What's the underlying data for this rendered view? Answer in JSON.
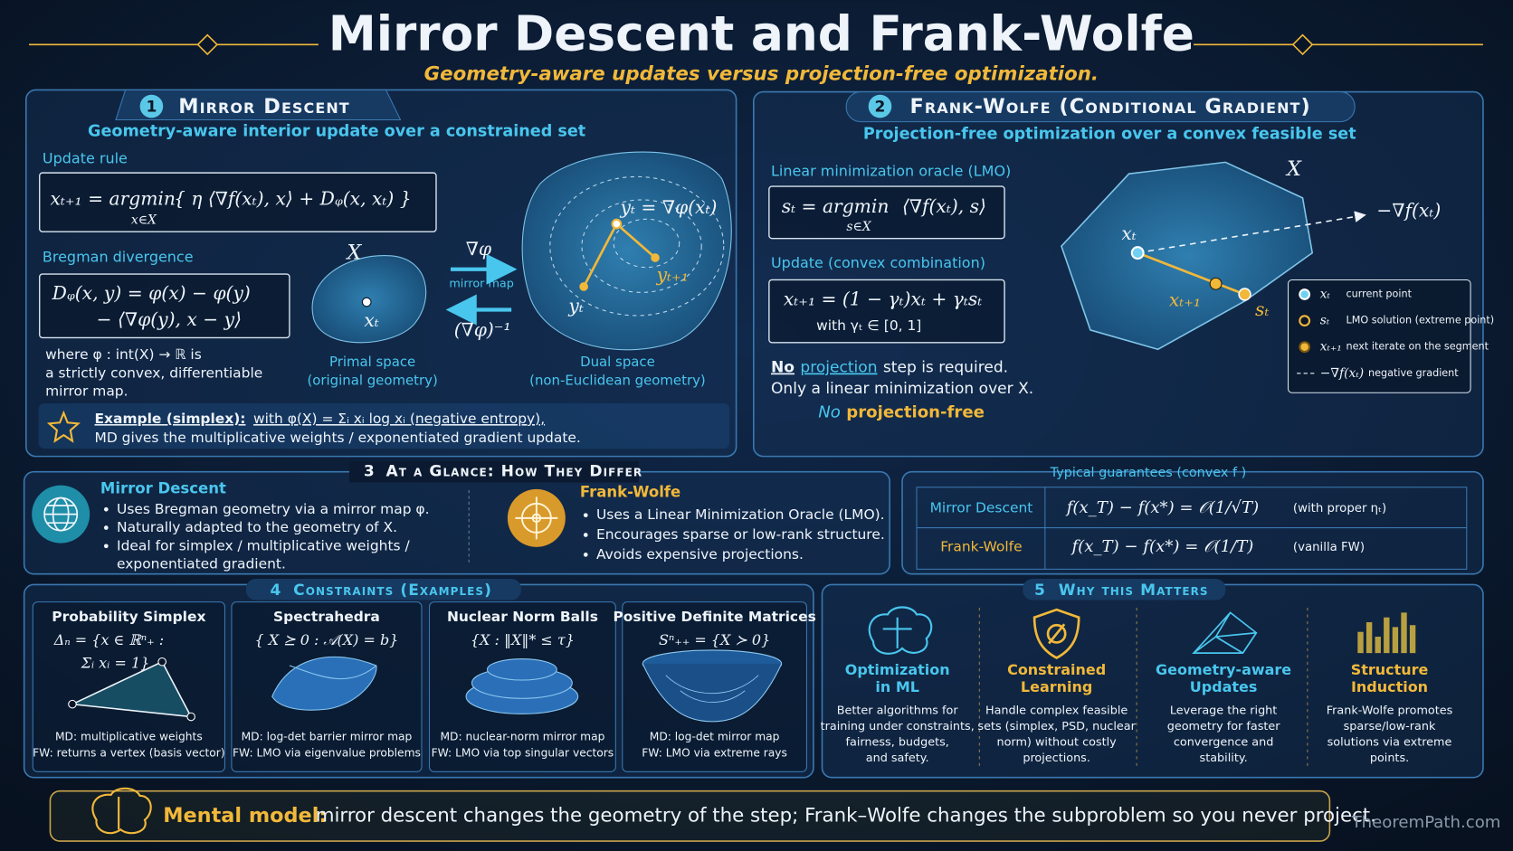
{
  "header": {
    "title": "Mirror Descent and Frank-Wolfe",
    "subtitle": "Geometry-aware updates versus projection-free optimization."
  },
  "mirror_descent": {
    "number": "1",
    "title": "Mirror Descent",
    "subtitle": "Geometry-aware interior update over a constrained set",
    "update_rule_label": "Update rule",
    "update_rule": {
      "lhs": "xₜ₊₁ = argmin",
      "sub": "x∈X",
      "rhs": "{ η ⟨∇f(xₜ), x⟩ + Dᵩ(x, xₜ) }"
    },
    "bregman_label": "Bregman divergence",
    "bregman": [
      "Dᵩ(x, y) = φ(x) − φ(y)",
      "− ⟨∇φ(y), x − y⟩"
    ],
    "where": [
      "where φ : int(X) → ℝ is",
      "a strictly convex, differentiable",
      "mirror map."
    ],
    "primal": {
      "set_label": "X",
      "point_label": "xₜ",
      "caption": [
        "Primal space",
        "(original geometry)"
      ]
    },
    "maps": {
      "forward": "∇φ",
      "forward_caption": "mirror map",
      "inverse": "(∇φ)⁻¹"
    },
    "dual": {
      "top_label": "yₜ = ∇φ(xₜ)",
      "next_label": "yₜ₊₁",
      "start_label": "yₜ",
      "caption": [
        "Dual space",
        "(non-Euclidean geometry)"
      ]
    },
    "example": {
      "label": "Example (simplex):",
      "text": "with φ(X) = Σᵢ xᵢ log xᵢ (negative entropy),",
      "text2": "MD gives the multiplicative weights / exponentiated gradient update."
    }
  },
  "frank_wolfe": {
    "number": "2",
    "title": "Frank-Wolfe (Conditional Gradient)",
    "subtitle": "Projection-free optimization over a convex feasible set",
    "lmo_label": "Linear minimization oracle (LMO)",
    "lmo": {
      "lhs": "sₜ = argmin",
      "sub": "s∈X",
      "rhs": "⟨∇f(xₜ), s⟩"
    },
    "update_label": "Update (convex combination)",
    "update": [
      "xₜ₊₁ = (1 − γₜ)xₜ + γₜsₜ",
      "with γₜ ∈ [0, 1]"
    ],
    "note": [
      "No",
      "projection",
      "step is required."
    ],
    "note2": "Only a linear minimization over X.",
    "tagline": [
      "No",
      "projection-free"
    ],
    "diagram": {
      "set_label": "X",
      "gradient_label": "−∇f(xₜ)",
      "x_label": "xₜ",
      "next_label": "xₜ₊₁",
      "s_label": "sₜ"
    },
    "legend": [
      {
        "symbol": "xₜ",
        "text": "current point"
      },
      {
        "symbol": "sₜ",
        "text": "LMO solution (extreme point)"
      },
      {
        "symbol": "xₜ₊₁",
        "text": "next iterate on the segment"
      },
      {
        "symbol": "−∇f(xₜ)",
        "text": "negative gradient"
      }
    ]
  },
  "comparison": {
    "number": "3",
    "title": "At a Glance: How They Differ",
    "mirror_descent": {
      "name": "Mirror Descent",
      "bullets": [
        [
          "Uses Bregman geometry via a mirror map φ."
        ],
        [
          "Naturally adapted to the geometry of X."
        ],
        [
          "Ideal for simplex / multiplicative weights /",
          "exponentiated gradient."
        ]
      ]
    },
    "frank_wolfe": {
      "name": "Frank-Wolfe",
      "bullets": [
        [
          "Uses a Linear Minimization Oracle (LMO)."
        ],
        [
          "Encourages sparse or low-rank structure."
        ],
        [
          "Avoids expensive projections."
        ]
      ]
    }
  },
  "guarantees": {
    "title": "Typical guarantees (convex f )",
    "rows": [
      {
        "method": "Mirror Descent",
        "rate": "f(x_T) − f(x*) = 𝒪(1/√T)",
        "note": "(with proper ηₜ)"
      },
      {
        "method": "Frank-Wolfe",
        "rate": "f(x_T) − f(x*) = 𝒪(1/T)",
        "note": "(vanilla FW)"
      }
    ]
  },
  "constraints": {
    "number": "4",
    "title": "Constraints (Examples)",
    "cards": [
      {
        "title": "Probability Simplex",
        "formula": [
          "Δₙ = {x ∈ ℝⁿ₊ :",
          "Σᵢ xᵢ = 1}"
        ],
        "md": "MD: multiplicative weights",
        "fw": "FW: returns a vertex (basis vector)"
      },
      {
        "title": "Spectrahedra",
        "formula": [
          "{ X ⪰ 0 : 𝒜(X) = b}"
        ],
        "md": "MD: log-det barrier mirror map",
        "fw": "FW: LMO via eigenvalue problems"
      },
      {
        "title": "Nuclear Norm Balls",
        "formula": [
          "{X : ‖X‖* ≤ τ}"
        ],
        "md": "MD: nuclear-norm mirror map",
        "fw": "FW: LMO via top singular vectors"
      },
      {
        "title": "Positive Definite Matrices",
        "formula": [
          "Sⁿ₊₊ = {X ≻ 0}"
        ],
        "md": "MD: log-det mirror map",
        "fw": "FW: LMO via extreme rays"
      }
    ]
  },
  "why": {
    "number": "5",
    "title": "Why this Matters",
    "items": [
      {
        "title": [
          "Optimization",
          "in ML"
        ],
        "text": [
          "Better algorithms for",
          "training under constraints,",
          "fairness, budgets,",
          "and safety."
        ]
      },
      {
        "title": [
          "Constrained",
          "Learning"
        ],
        "text": [
          "Handle complex feasible",
          "sets (simplex, PSD, nuclear",
          "norm) without costly",
          "projections."
        ]
      },
      {
        "title": [
          "Geometry-aware",
          "Updates"
        ],
        "text": [
          "Leverage the right",
          "geometry for faster",
          "convergence and",
          "stability."
        ]
      },
      {
        "title": [
          "Structure",
          "Induction"
        ],
        "text": [
          "Frank-Wolfe promotes",
          "sparse/low-rank",
          "solutions via extreme",
          "points."
        ]
      }
    ]
  },
  "footer": {
    "label": "Mental model:",
    "text": "mirror descent changes the geometry of the step; Frank–Wolfe changes the subproblem so you never project.",
    "brand": "TheoremPath.com"
  }
}
